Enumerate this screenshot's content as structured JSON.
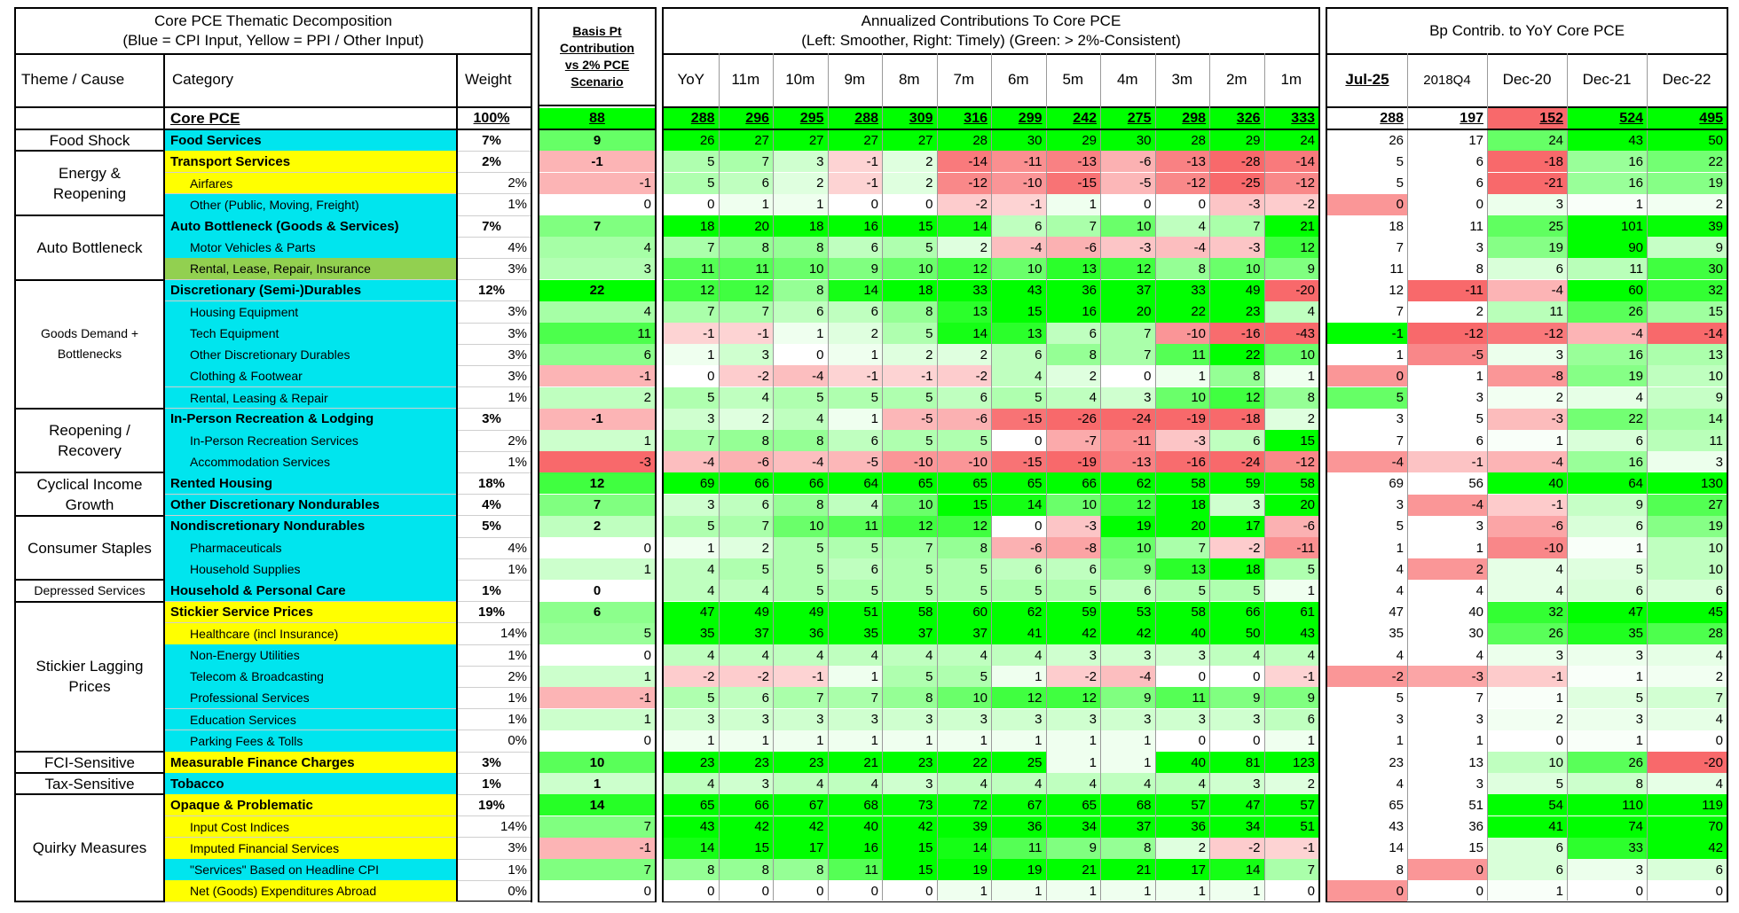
{
  "panels": {
    "left": {
      "title1": "Core PCE Thematic  Decomposition",
      "title2": "(Blue = CPI Input, Yellow = PPI / Other Input)",
      "col_theme": "Theme / Cause",
      "col_category": "Category",
      "col_weight": "Weight"
    },
    "bp": {
      "title": "Basis Pt Contribution vs 2% PCE Scenario"
    },
    "ann": {
      "title1": "Annualized Contributions To Core PCE",
      "title2": "(Left: Smoother, Right: Timely) (Green: > 2%-Consistent)",
      "cols": [
        "YoY",
        "11m",
        "10m",
        "9m",
        "8m",
        "7m",
        "6m",
        "5m",
        "4m",
        "3m",
        "2m",
        "1m"
      ]
    },
    "bpc": {
      "title": "Bp Contrib. to YoY Core PCE",
      "cols": [
        "Jul-25",
        "2018Q4",
        "Dec-20",
        "Dec-21",
        "Dec-22"
      ]
    }
  },
  "colors": {
    "blue": "#00e5ee",
    "yellow": "#ffff00",
    "olive": "#92d050",
    "green": "#00ff00",
    "red": "#f8696b",
    "white": "#ffffff"
  },
  "themes": [
    {
      "label": "",
      "start": 0,
      "span": 1
    },
    {
      "label": "Food Shock",
      "start": 1,
      "span": 1
    },
    {
      "label": "Energy & Reopening",
      "start": 2,
      "span": 3
    },
    {
      "label": "Auto Bottleneck",
      "start": 5,
      "span": 3
    },
    {
      "label": "Goods Demand + Bottlenecks",
      "start": 8,
      "span": 6,
      "small": true
    },
    {
      "label": "Reopening / Recovery",
      "start": 14,
      "span": 3
    },
    {
      "label": "Cyclical Income Growth",
      "start": 17,
      "span": 2
    },
    {
      "label": "Consumer Staples",
      "start": 19,
      "span": 3
    },
    {
      "label": "Depressed Services",
      "start": 22,
      "span": 1,
      "small": true
    },
    {
      "label": "Stickier Lagging Prices",
      "start": 23,
      "span": 7
    },
    {
      "label": "FCI-Sensitive",
      "start": 30,
      "span": 1
    },
    {
      "label": "Tax-Sensitive",
      "start": 31,
      "span": 1
    },
    {
      "label": "Quirky Measures",
      "start": 32,
      "span": 5
    }
  ],
  "rows": [
    {
      "cat": "Core PCE",
      "color": "white",
      "main": true,
      "weight": "100%",
      "bp": "88",
      "ann": [
        288,
        296,
        295,
        288,
        309,
        316,
        299,
        242,
        275,
        298,
        326,
        333
      ],
      "bpc": [
        288,
        197,
        152,
        524,
        495
      ]
    },
    {
      "cat": "Food Services",
      "color": "blue",
      "main": true,
      "weight": "7%",
      "bp": "9",
      "ann": [
        26,
        27,
        27,
        27,
        27,
        28,
        30,
        29,
        30,
        28,
        29,
        24
      ],
      "bpc": [
        26,
        17,
        24,
        43,
        50
      ]
    },
    {
      "cat": "Transport Services",
      "color": "yellow",
      "main": true,
      "weight": "2%",
      "bp": "-1",
      "ann": [
        5,
        7,
        3,
        -1,
        2,
        -14,
        -11,
        -13,
        -6,
        -13,
        -28,
        -14
      ],
      "bpc": [
        5,
        6,
        -18,
        16,
        22
      ]
    },
    {
      "cat": "Airfares",
      "color": "yellow",
      "main": false,
      "weight": "2%",
      "bp": "-1",
      "ann": [
        5,
        6,
        2,
        -1,
        2,
        -12,
        -10,
        -15,
        -5,
        -12,
        -25,
        -12
      ],
      "bpc": [
        5,
        6,
        -21,
        16,
        19
      ]
    },
    {
      "cat": "Other (Public, Moving, Freight)",
      "color": "blue",
      "main": false,
      "weight": "1%",
      "bp": "0",
      "ann": [
        0,
        1,
        1,
        0,
        0,
        -2,
        -1,
        1,
        0,
        0,
        -3,
        -2
      ],
      "bpc": [
        0,
        0,
        3,
        1,
        2
      ]
    },
    {
      "cat": "Auto Bottleneck (Goods & Services)",
      "color": "blue",
      "main": true,
      "weight": "7%",
      "bp": "7",
      "ann": [
        18,
        20,
        18,
        16,
        15,
        14,
        6,
        7,
        10,
        4,
        7,
        21
      ],
      "bpc": [
        18,
        11,
        25,
        101,
        39
      ]
    },
    {
      "cat": "Motor Vehicles & Parts",
      "color": "blue",
      "main": false,
      "weight": "4%",
      "bp": "4",
      "ann": [
        7,
        8,
        8,
        6,
        5,
        2,
        -4,
        -6,
        -3,
        -4,
        -3,
        12
      ],
      "bpc": [
        7,
        3,
        19,
        90,
        9
      ]
    },
    {
      "cat": "Rental, Lease, Repair, Insurance",
      "color": "olive",
      "main": false,
      "weight": "3%",
      "bp": "3",
      "ann": [
        11,
        11,
        10,
        9,
        10,
        12,
        10,
        13,
        12,
        8,
        10,
        9
      ],
      "bpc": [
        11,
        8,
        6,
        11,
        30
      ]
    },
    {
      "cat": "Discretionary (Semi-)Durables",
      "color": "blue",
      "main": true,
      "weight": "12%",
      "bp": "22",
      "ann": [
        12,
        12,
        8,
        14,
        18,
        33,
        43,
        36,
        37,
        33,
        49,
        -20
      ],
      "bpc": [
        12,
        -11,
        -4,
        60,
        32
      ]
    },
    {
      "cat": "Housing Equipment",
      "color": "blue",
      "main": false,
      "weight": "3%",
      "bp": "4",
      "ann": [
        7,
        7,
        6,
        6,
        8,
        13,
        15,
        16,
        20,
        22,
        23,
        4
      ],
      "bpc": [
        7,
        2,
        11,
        26,
        15
      ]
    },
    {
      "cat": "Tech Equipment",
      "color": "blue",
      "main": false,
      "weight": "3%",
      "bp": "11",
      "ann": [
        -1,
        -1,
        1,
        2,
        5,
        14,
        13,
        6,
        7,
        -10,
        -16,
        -43
      ],
      "bpc": [
        -1,
        -12,
        -12,
        -4,
        -14
      ]
    },
    {
      "cat": "Other Discretionary Durables",
      "color": "blue",
      "main": false,
      "weight": "3%",
      "bp": "6",
      "ann": [
        1,
        3,
        0,
        1,
        2,
        2,
        6,
        8,
        7,
        11,
        22,
        10
      ],
      "bpc": [
        1,
        -5,
        3,
        16,
        13
      ]
    },
    {
      "cat": "Clothing & Footwear",
      "color": "blue",
      "main": false,
      "weight": "3%",
      "bp": "-1",
      "ann": [
        0,
        -2,
        -4,
        -1,
        -1,
        -2,
        4,
        2,
        0,
        1,
        8,
        1
      ],
      "bpc": [
        0,
        1,
        -8,
        19,
        10
      ]
    },
    {
      "cat": "Rental, Leasing & Repair",
      "color": "blue",
      "main": false,
      "weight": "1%",
      "bp": "2",
      "ann": [
        5,
        4,
        5,
        5,
        5,
        6,
        5,
        4,
        3,
        10,
        12,
        8
      ],
      "bpc": [
        5,
        3,
        2,
        4,
        9
      ]
    },
    {
      "cat": "In-Person Recreation & Lodging",
      "color": "blue",
      "main": true,
      "weight": "3%",
      "bp": "-1",
      "ann": [
        3,
        2,
        4,
        1,
        -5,
        -6,
        -15,
        -26,
        -24,
        -19,
        -18,
        2
      ],
      "bpc": [
        3,
        5,
        -3,
        22,
        14
      ]
    },
    {
      "cat": "In-Person Recreation Services",
      "color": "blue",
      "main": false,
      "weight": "2%",
      "bp": "1",
      "ann": [
        7,
        8,
        8,
        6,
        5,
        5,
        0,
        -7,
        -11,
        -3,
        6,
        15
      ],
      "bpc": [
        7,
        6,
        1,
        6,
        11
      ]
    },
    {
      "cat": "Accommodation Services",
      "color": "blue",
      "main": false,
      "weight": "1%",
      "bp": "-3",
      "ann": [
        -4,
        -6,
        -4,
        -5,
        -10,
        -10,
        -15,
        -19,
        -13,
        -16,
        -24,
        -12
      ],
      "bpc": [
        -4,
        -1,
        -4,
        16,
        3
      ]
    },
    {
      "cat": "Rented Housing",
      "color": "blue",
      "main": true,
      "weight": "18%",
      "bp": "12",
      "ann": [
        69,
        66,
        66,
        64,
        65,
        65,
        65,
        66,
        62,
        58,
        59,
        58
      ],
      "bpc": [
        69,
        56,
        40,
        64,
        130
      ]
    },
    {
      "cat": "Other Discretionary Nondurables",
      "color": "blue",
      "main": true,
      "weight": "4%",
      "bp": "7",
      "ann": [
        3,
        6,
        8,
        4,
        10,
        15,
        14,
        10,
        12,
        18,
        3,
        20
      ],
      "bpc": [
        3,
        -4,
        -1,
        9,
        27
      ]
    },
    {
      "cat": "Nondiscretionary Nondurables",
      "color": "blue",
      "main": true,
      "weight": "5%",
      "bp": "2",
      "ann": [
        5,
        7,
        10,
        11,
        12,
        12,
        0,
        -3,
        19,
        20,
        17,
        -6
      ],
      "bpc": [
        5,
        3,
        -6,
        6,
        19
      ]
    },
    {
      "cat": "Pharmaceuticals",
      "color": "blue",
      "main": false,
      "weight": "4%",
      "bp": "0",
      "ann": [
        1,
        2,
        5,
        5,
        7,
        8,
        -6,
        -8,
        10,
        7,
        -2,
        -11
      ],
      "bpc": [
        1,
        1,
        -10,
        1,
        10
      ]
    },
    {
      "cat": "Household Supplies",
      "color": "blue",
      "main": false,
      "weight": "1%",
      "bp": "1",
      "ann": [
        4,
        5,
        5,
        6,
        5,
        5,
        6,
        6,
        9,
        13,
        18,
        5
      ],
      "bpc": [
        4,
        2,
        4,
        5,
        10
      ]
    },
    {
      "cat": "Household & Personal Care",
      "color": "blue",
      "main": true,
      "weight": "1%",
      "bp": "0",
      "ann": [
        4,
        4,
        5,
        5,
        5,
        5,
        5,
        5,
        6,
        5,
        5,
        1
      ],
      "bpc": [
        4,
        4,
        4,
        6,
        6
      ]
    },
    {
      "cat": "Stickier Service Prices",
      "color": "yellow",
      "main": true,
      "weight": "19%",
      "bp": "6",
      "ann": [
        47,
        49,
        49,
        51,
        58,
        60,
        62,
        59,
        53,
        58,
        66,
        61
      ],
      "bpc": [
        47,
        40,
        32,
        47,
        45
      ]
    },
    {
      "cat": "Healthcare (incl Insurance)",
      "color": "yellow",
      "main": false,
      "weight": "14%",
      "bp": "5",
      "ann": [
        35,
        37,
        36,
        35,
        37,
        37,
        41,
        42,
        42,
        40,
        50,
        43
      ],
      "bpc": [
        35,
        30,
        26,
        35,
        28
      ]
    },
    {
      "cat": "Non-Energy Utilities",
      "color": "blue",
      "main": false,
      "weight": "1%",
      "bp": "0",
      "ann": [
        4,
        4,
        4,
        4,
        4,
        4,
        4,
        3,
        3,
        3,
        4,
        4
      ],
      "bpc": [
        4,
        4,
        3,
        3,
        4
      ]
    },
    {
      "cat": "Telecom & Broadcasting",
      "color": "blue",
      "main": false,
      "weight": "2%",
      "bp": "1",
      "ann": [
        -2,
        -2,
        -1,
        1,
        5,
        5,
        1,
        -2,
        -4,
        0,
        0,
        -1
      ],
      "bpc": [
        -2,
        -3,
        -1,
        1,
        2
      ]
    },
    {
      "cat": "Professional Services",
      "color": "blue",
      "main": false,
      "weight": "1%",
      "bp": "-1",
      "ann": [
        5,
        6,
        7,
        7,
        8,
        10,
        12,
        12,
        9,
        11,
        9,
        9
      ],
      "bpc": [
        5,
        7,
        1,
        5,
        7
      ]
    },
    {
      "cat": "Education Services",
      "color": "blue",
      "main": false,
      "weight": "1%",
      "bp": "1",
      "ann": [
        3,
        3,
        3,
        3,
        3,
        3,
        3,
        3,
        3,
        3,
        3,
        6
      ],
      "bpc": [
        3,
        3,
        2,
        3,
        4
      ]
    },
    {
      "cat": "Parking Fees & Tolls",
      "color": "blue",
      "main": false,
      "weight": "0%",
      "bp": "0",
      "ann": [
        1,
        1,
        1,
        1,
        1,
        1,
        1,
        1,
        1,
        0,
        0,
        1
      ],
      "bpc": [
        1,
        1,
        0,
        1,
        0
      ]
    },
    {
      "cat": "Measurable Finance Charges",
      "color": "yellow",
      "main": true,
      "weight": "3%",
      "bp": "10",
      "ann": [
        23,
        23,
        23,
        21,
        23,
        22,
        25,
        1,
        1,
        40,
        81,
        123
      ],
      "bpc": [
        23,
        13,
        10,
        26,
        -20
      ]
    },
    {
      "cat": "Tobacco",
      "color": "blue",
      "main": true,
      "weight": "1%",
      "bp": "1",
      "ann": [
        4,
        3,
        4,
        4,
        3,
        4,
        4,
        4,
        4,
        4,
        3,
        2
      ],
      "bpc": [
        4,
        3,
        5,
        8,
        4
      ]
    },
    {
      "cat": "Opaque & Problematic",
      "color": "yellow",
      "main": true,
      "weight": "19%",
      "bp": "14",
      "ann": [
        65,
        66,
        67,
        68,
        73,
        72,
        67,
        65,
        68,
        57,
        47,
        57
      ],
      "bpc": [
        65,
        51,
        54,
        110,
        119
      ]
    },
    {
      "cat": "Input Cost Indices",
      "color": "yellow",
      "main": false,
      "weight": "14%",
      "bp": "7",
      "ann": [
        43,
        42,
        42,
        40,
        42,
        39,
        36,
        34,
        37,
        36,
        34,
        51
      ],
      "bpc": [
        43,
        36,
        41,
        74,
        70
      ]
    },
    {
      "cat": "Imputed Financial Services",
      "color": "yellow",
      "main": false,
      "weight": "3%",
      "bp": "-1",
      "ann": [
        14,
        15,
        17,
        16,
        15,
        14,
        11,
        9,
        8,
        2,
        -2,
        -1
      ],
      "bpc": [
        14,
        15,
        6,
        33,
        42
      ]
    },
    {
      "cat": "\"Services\" Based on Headline CPI",
      "color": "blue",
      "main": false,
      "weight": "1%",
      "bp": "7",
      "ann": [
        8,
        8,
        8,
        11,
        15,
        19,
        19,
        21,
        21,
        17,
        14,
        7
      ],
      "bpc": [
        8,
        0,
        6,
        3,
        6
      ]
    },
    {
      "cat": "Net (Goods) Expenditures Abroad",
      "color": "yellow",
      "main": false,
      "weight": "0%",
      "bp": "0",
      "ann": [
        0,
        0,
        0,
        0,
        0,
        1,
        1,
        1,
        1,
        1,
        1,
        0
      ],
      "bpc": [
        0,
        0,
        1,
        0,
        0
      ]
    }
  ]
}
